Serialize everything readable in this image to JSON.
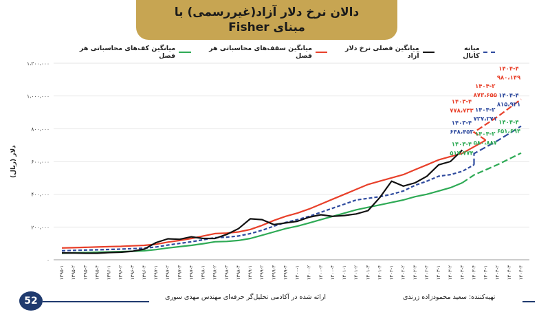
{
  "header": {
    "title_line1": "دالان نرخ دلار آزاد(غیررسمی) با",
    "title_line2": "مبنای Fisher"
  },
  "legend": [
    {
      "label": "میانه کانال",
      "color": "#2e4a9e",
      "dashed": true
    },
    {
      "label": "میانگین فصلی نرخ دلار آزاد",
      "color": "#111111",
      "dashed": false
    },
    {
      "label": "میانگین سقف‌های محاسباتی هر فصل",
      "color": "#e8402a",
      "dashed": false
    },
    {
      "label": "میانگین کف‌های محاسباتی هر فصل",
      "color": "#2eaa55",
      "dashed": false
    }
  ],
  "footer": {
    "page_number": "52",
    "credit_left": "ارائه شده در آکادمی تحلیل‌گر حرفه‌ای مهندس مهدی سوری",
    "credit_right": "تهیه‌کننده: سعید محمودزاده زرندی"
  },
  "chart_data": {
    "type": "line",
    "ylabel": "دلار (ریال)",
    "ylim": [
      0,
      1200000
    ],
    "yticks": [
      "۰",
      "۲۰۰،۰۰۰",
      "۴۰۰،۰۰۰",
      "۶۰۰،۰۰۰",
      "۸۰۰،۰۰۰",
      "۱،۰۰۰،۰۰۰",
      "۱،۲۰۰،۰۰۰"
    ],
    "ytick_values": [
      0,
      200000,
      400000,
      600000,
      800000,
      1000000,
      1200000
    ],
    "categories": [
      "۱۳۹۵-۱",
      "۱۳۹۵-۲",
      "۱۳۹۵-۳",
      "۱۳۹۵-۴",
      "۱۳۹۶-۱",
      "۱۳۹۶-۲",
      "۱۳۹۶-۳",
      "۱۳۹۶-۴",
      "۱۳۹۷-۱",
      "۱۳۹۷-۲",
      "۱۳۹۷-۳",
      "۱۳۹۷-۴",
      "۱۳۹۸-۱",
      "۱۳۹۸-۲",
      "۱۳۹۸-۳",
      "۱۳۹۸-۴",
      "۱۳۹۹-۱",
      "۱۳۹۹-۲",
      "۱۳۹۹-۳",
      "۱۳۹۹-۴",
      "۱۴۰۰-۱",
      "۱۴۰۰-۲",
      "۱۴۰۰-۳",
      "۱۴۰۰-۴",
      "۱۴۰۱-۱",
      "۱۴۰۱-۲",
      "۱۴۰۱-۳",
      "۱۴۰۱-۴",
      "۱۴۰۲-۱",
      "۱۴۰۲-۲",
      "۱۴۰۲-۳",
      "۱۴۰۲-۴",
      "۱۴۰۳-۱",
      "۱۴۰۳-۲",
      "۱۴۰۳-۳",
      "۱۴۰۳-۴",
      "۱۴۰۴-۱",
      "۱۴۰۴-۲",
      "۱۴۰۴-۳",
      "۱۴۰۴-۴"
    ],
    "series": [
      {
        "name": "میانگین سقف‌های محاسباتی هر فصل",
        "color": "#e8402a",
        "values": [
          72000,
          74000,
          76000,
          78000,
          80000,
          82000,
          85000,
          88000,
          95000,
          108000,
          118000,
          130000,
          145000,
          160000,
          163000,
          170000,
          185000,
          210000,
          240000,
          265000,
          285000,
          310000,
          340000,
          370000,
          400000,
          430000,
          460000,
          480000,
          500000,
          520000,
          550000,
          580000,
          610000,
          630000,
          650000,
          690000,
          730000,
          null,
          null,
          null
        ]
      },
      {
        "name": "میانه کانال",
        "color": "#2e4a9e",
        "dashed": true,
        "values": [
          55000,
          57000,
          59000,
          61000,
          63000,
          65000,
          68000,
          71000,
          78000,
          90000,
          100000,
          110000,
          122000,
          135000,
          138000,
          145000,
          160000,
          180000,
          205000,
          228000,
          245000,
          265000,
          290000,
          315000,
          340000,
          365000,
          375000,
          385000,
          400000,
          420000,
          455000,
          480000,
          510000,
          520000,
          540000,
          580000,
          null,
          null,
          null,
          null
        ]
      },
      {
        "name": "میانگین کف‌های محاسباتی هر فصل",
        "color": "#2eaa55",
        "values": [
          40000,
          42000,
          44000,
          46000,
          48000,
          50000,
          52000,
          55000,
          62000,
          72000,
          80000,
          88000,
          98000,
          110000,
          112000,
          118000,
          130000,
          150000,
          170000,
          190000,
          205000,
          225000,
          245000,
          265000,
          285000,
          305000,
          320000,
          335000,
          350000,
          365000,
          385000,
          400000,
          420000,
          440000,
          470000,
          null,
          null,
          null,
          null,
          null
        ]
      },
      {
        "name": "میانگین فصلی نرخ دلار آزاد",
        "color": "#111111",
        "values": [
          42000,
          41000,
          40000,
          40000,
          44000,
          46000,
          52000,
          65000,
          105000,
          128000,
          125000,
          140000,
          130000,
          130000,
          155000,
          190000,
          250000,
          245000,
          215000,
          225000,
          235000,
          260000,
          275000,
          265000,
          270000,
          280000,
          300000,
          380000,
          480000,
          450000,
          470000,
          510000,
          580000,
          600000,
          670000,
          null,
          null,
          null,
          null,
          null
        ]
      }
    ],
    "forecast": [
      {
        "series": "میانگین سقف‌های محاسباتی هر فصل",
        "color": "#e8402a",
        "points": [
          {
            "x": "۱۴۰۳-۴",
            "y": 778733
          },
          {
            "x": "۱۴۰۴-۲",
            "y": 873655
          },
          {
            "x": "۱۴۰۴-۴",
            "y": 980149
          }
        ],
        "labels": [
          {
            "period": "۱۴۰۳-۴",
            "value": "۷۷۸،۷۳۳"
          },
          {
            "period": "۱۴۰۴-۲",
            "value": "۸۷۳،۶۵۵"
          },
          {
            "period": "۱۴۰۴-۴",
            "value": "۹۸۰،۱۴۹"
          }
        ]
      },
      {
        "series": "میانه کانال",
        "color": "#2e4a9e",
        "points": [
          {
            "x": "۱۴۰۳-۴",
            "y": 648453
          },
          {
            "x": "۱۴۰۴-۲",
            "y": 727271
          },
          {
            "x": "۱۴۰۴-۴",
            "y": 815921
          }
        ],
        "labels": [
          {
            "period": "۱۴۰۳-۴",
            "value": "۶۴۸،۴۵۳"
          },
          {
            "period": "۱۴۰۴-۲",
            "value": "۷۲۷،۲۷۱"
          },
          {
            "period": "۱۴۰۴-۴",
            "value": "۸۱۵،۹۲۱"
          }
        ]
      },
      {
        "series": "میانگین کف‌های محاسباتی هر فصل",
        "color": "#2eaa55",
        "points": [
          {
            "x": "۱۴۰۳-۴",
            "y": 517774
          },
          {
            "x": "۱۴۰۴-۲",
            "y": 580887
          },
          {
            "x": "۱۴۰۴-۴",
            "y": 651694
          }
        ],
        "labels": [
          {
            "period": "۱۴۰۳-۴",
            "value": "۵۱۷،۷۷۴"
          },
          {
            "period": "۱۴۰۴-۲",
            "value": "۵۸۰،۸۸۷"
          },
          {
            "period": "۱۴۰۴-۴",
            "value": "۶۵۱،۶۹۴"
          }
        ]
      }
    ]
  }
}
